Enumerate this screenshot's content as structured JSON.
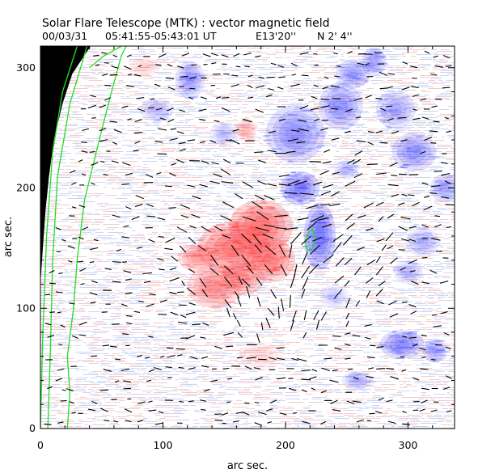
{
  "chart_data": {
    "type": "heatmap",
    "title": "Solar Flare Telescope (MTK) : vector magnetic field",
    "subtitle": {
      "date": "00/03/31",
      "time_range": "05:41:55-05:43:01 UT",
      "longitude": "E13'20''",
      "latitude": "N 2' 4''"
    },
    "xlabel": "arc sec.",
    "ylabel": "arc sec.",
    "xlim": [
      0,
      338
    ],
    "ylim": [
      0,
      318
    ],
    "xticks": [
      0,
      100,
      200,
      300
    ],
    "yticks": [
      0,
      100,
      200,
      300
    ],
    "colors": {
      "positive_polarity": "#ff3030",
      "negative_polarity": "#3a3aff",
      "neutral_line": "#22dd22",
      "arrow": "#000000",
      "off_limb": "#000000",
      "background": "#ffffff"
    },
    "positive_regions": [
      {
        "x": 180,
        "y": 168,
        "rx": 26,
        "ry": 22,
        "strength": 1.0
      },
      {
        "x": 158,
        "y": 150,
        "rx": 30,
        "ry": 22,
        "strength": 0.95
      },
      {
        "x": 188,
        "y": 140,
        "rx": 20,
        "ry": 18,
        "strength": 0.85
      },
      {
        "x": 142,
        "y": 118,
        "rx": 22,
        "ry": 18,
        "strength": 0.75
      },
      {
        "x": 128,
        "y": 142,
        "rx": 16,
        "ry": 12,
        "strength": 0.6
      },
      {
        "x": 165,
        "y": 125,
        "rx": 18,
        "ry": 14,
        "strength": 0.7
      },
      {
        "x": 168,
        "y": 248,
        "rx": 8,
        "ry": 10,
        "strength": 0.45
      },
      {
        "x": 85,
        "y": 300,
        "rx": 12,
        "ry": 8,
        "strength": 0.25
      },
      {
        "x": 180,
        "y": 60,
        "rx": 18,
        "ry": 12,
        "strength": 0.2
      }
    ],
    "negative_regions": [
      {
        "x": 228,
        "y": 160,
        "rx": 13,
        "ry": 28,
        "strength": 1.0
      },
      {
        "x": 212,
        "y": 200,
        "rx": 16,
        "ry": 14,
        "strength": 0.9
      },
      {
        "x": 208,
        "y": 245,
        "rx": 24,
        "ry": 24,
        "strength": 0.75
      },
      {
        "x": 245,
        "y": 268,
        "rx": 18,
        "ry": 20,
        "strength": 0.7
      },
      {
        "x": 255,
        "y": 295,
        "rx": 14,
        "ry": 12,
        "strength": 0.65
      },
      {
        "x": 272,
        "y": 305,
        "rx": 10,
        "ry": 12,
        "strength": 0.6
      },
      {
        "x": 290,
        "y": 265,
        "rx": 16,
        "ry": 16,
        "strength": 0.55
      },
      {
        "x": 305,
        "y": 230,
        "rx": 18,
        "ry": 16,
        "strength": 0.7
      },
      {
        "x": 330,
        "y": 200,
        "rx": 12,
        "ry": 12,
        "strength": 0.55
      },
      {
        "x": 312,
        "y": 155,
        "rx": 14,
        "ry": 12,
        "strength": 0.45
      },
      {
        "x": 300,
        "y": 130,
        "rx": 12,
        "ry": 10,
        "strength": 0.4
      },
      {
        "x": 295,
        "y": 70,
        "rx": 18,
        "ry": 12,
        "strength": 0.8
      },
      {
        "x": 322,
        "y": 65,
        "rx": 10,
        "ry": 10,
        "strength": 0.6
      },
      {
        "x": 122,
        "y": 290,
        "rx": 12,
        "ry": 16,
        "strength": 0.6
      },
      {
        "x": 95,
        "y": 265,
        "rx": 14,
        "ry": 10,
        "strength": 0.4
      },
      {
        "x": 150,
        "y": 245,
        "rx": 12,
        "ry": 10,
        "strength": 0.35
      },
      {
        "x": 258,
        "y": 40,
        "rx": 12,
        "ry": 8,
        "strength": 0.45
      },
      {
        "x": 240,
        "y": 110,
        "rx": 12,
        "ry": 10,
        "strength": 0.3
      },
      {
        "x": 250,
        "y": 215,
        "rx": 10,
        "ry": 8,
        "strength": 0.4
      }
    ],
    "limb_x_at_y": [
      {
        "y": 318,
        "x": 41
      },
      {
        "y": 295,
        "x": 26
      },
      {
        "y": 270,
        "x": 18
      },
      {
        "y": 240,
        "x": 11
      },
      {
        "y": 210,
        "x": 7
      },
      {
        "y": 180,
        "x": 4
      },
      {
        "y": 150,
        "x": 2
      },
      {
        "y": 120,
        "x": 0
      }
    ],
    "neutral_lines": [
      {
        "name": "limb-contour-1",
        "points": [
          [
            0,
            0
          ],
          [
            2,
            80
          ],
          [
            5,
            160
          ],
          [
            10,
            230
          ],
          [
            18,
            280
          ],
          [
            30,
            318
          ]
        ]
      },
      {
        "name": "limb-contour-2",
        "points": [
          [
            6,
            0
          ],
          [
            8,
            60
          ],
          [
            10,
            140
          ],
          [
            14,
            210
          ],
          [
            24,
            270
          ],
          [
            38,
            318
          ]
        ]
      },
      {
        "name": "limb-contour-3",
        "points": [
          [
            22,
            0
          ],
          [
            24,
            30
          ],
          [
            22,
            60
          ],
          [
            27,
            100
          ],
          [
            30,
            140
          ],
          [
            36,
            190
          ],
          [
            48,
            240
          ],
          [
            58,
            280
          ],
          [
            66,
            310
          ],
          [
            70,
            318
          ]
        ]
      },
      {
        "name": "limb-contour-4",
        "points": [
          [
            40,
            300
          ],
          [
            52,
            310
          ],
          [
            66,
            318
          ]
        ]
      },
      {
        "name": "polarity-inversion-line",
        "points": [
          [
            218,
            162
          ],
          [
            222,
            166
          ],
          [
            224,
            158
          ],
          [
            222,
            150
          ],
          [
            218,
            148
          ],
          [
            216,
            156
          ],
          [
            218,
            162
          ]
        ]
      }
    ],
    "transverse_field_arrows": "dense grid of short black segments overlaid on the magnetogram"
  }
}
